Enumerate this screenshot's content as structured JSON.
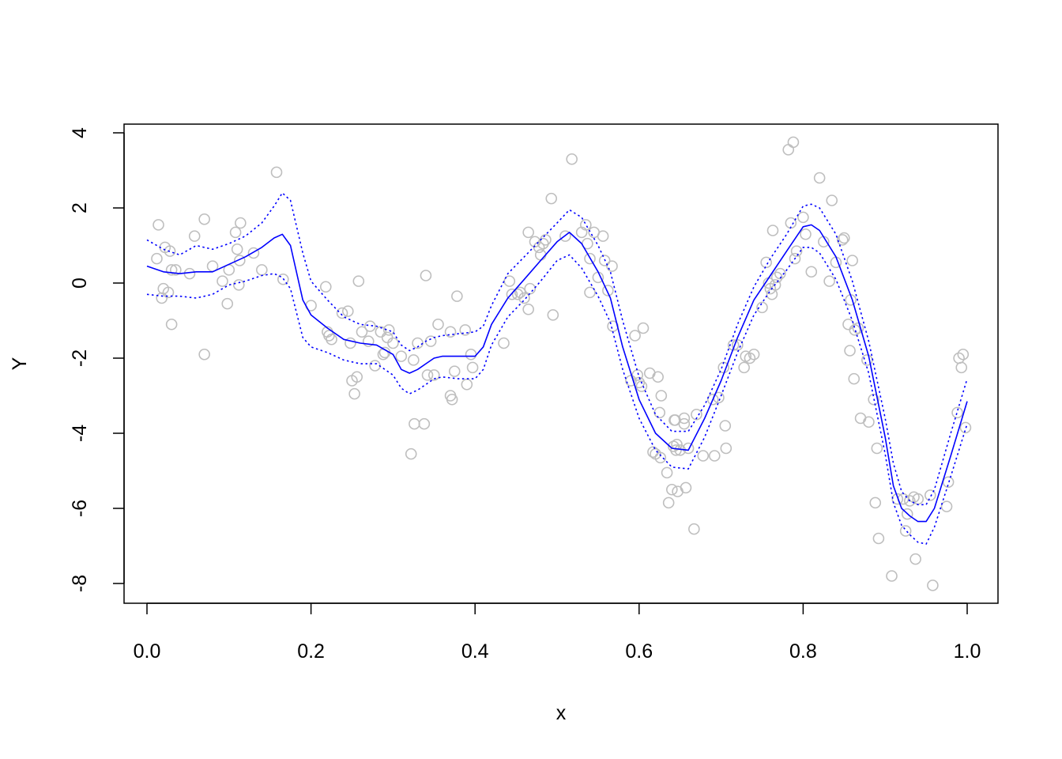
{
  "chart_data": {
    "type": "scatter",
    "title": "",
    "xlabel": "x",
    "ylabel": "Y",
    "xlim": [
      0,
      1
    ],
    "ylim": [
      -8,
      4
    ],
    "x_ticks": [
      "0.0",
      "0.2",
      "0.4",
      "0.6",
      "0.8",
      "1.0"
    ],
    "y_ticks": [
      "4",
      "2",
      "0",
      "-2",
      "-4",
      "-6",
      "-8"
    ],
    "grid": false,
    "legend": "none",
    "colors": {
      "points": "#bebebe",
      "fit": "#0000ff",
      "band": "#0000ff"
    },
    "points": [
      [
        0.012,
        0.65
      ],
      [
        0.014,
        1.55
      ],
      [
        0.018,
        -0.4
      ],
      [
        0.02,
        -0.15
      ],
      [
        0.022,
        0.95
      ],
      [
        0.026,
        -0.25
      ],
      [
        0.028,
        0.85
      ],
      [
        0.03,
        0.35
      ],
      [
        0.03,
        -1.1
      ],
      [
        0.035,
        0.35
      ],
      [
        0.052,
        0.25
      ],
      [
        0.058,
        1.25
      ],
      [
        0.07,
        1.7
      ],
      [
        0.07,
        -1.9
      ],
      [
        0.08,
        0.45
      ],
      [
        0.092,
        0.05
      ],
      [
        0.098,
        -0.55
      ],
      [
        0.1,
        0.35
      ],
      [
        0.108,
        1.35
      ],
      [
        0.11,
        0.9
      ],
      [
        0.112,
        -0.05
      ],
      [
        0.113,
        0.6
      ],
      [
        0.114,
        1.6
      ],
      [
        0.13,
        0.8
      ],
      [
        0.14,
        0.35
      ],
      [
        0.158,
        2.95
      ],
      [
        0.166,
        0.1
      ],
      [
        0.2,
        -0.6
      ],
      [
        0.218,
        -0.1
      ],
      [
        0.22,
        -1.3
      ],
      [
        0.222,
        -1.4
      ],
      [
        0.225,
        -1.5
      ],
      [
        0.238,
        -0.8
      ],
      [
        0.245,
        -0.75
      ],
      [
        0.248,
        -1.6
      ],
      [
        0.25,
        -2.6
      ],
      [
        0.253,
        -2.95
      ],
      [
        0.256,
        -2.5
      ],
      [
        0.258,
        0.05
      ],
      [
        0.262,
        -1.3
      ],
      [
        0.27,
        -1.55
      ],
      [
        0.272,
        -1.15
      ],
      [
        0.278,
        -2.2
      ],
      [
        0.285,
        -1.3
      ],
      [
        0.288,
        -1.9
      ],
      [
        0.29,
        -1.85
      ],
      [
        0.293,
        -1.45
      ],
      [
        0.295,
        -1.25
      ],
      [
        0.3,
        -1.6
      ],
      [
        0.31,
        -1.95
      ],
      [
        0.322,
        -4.55
      ],
      [
        0.325,
        -2.05
      ],
      [
        0.326,
        -3.75
      ],
      [
        0.33,
        -1.6
      ],
      [
        0.338,
        -3.75
      ],
      [
        0.34,
        0.2
      ],
      [
        0.342,
        -2.45
      ],
      [
        0.346,
        -1.55
      ],
      [
        0.35,
        -2.45
      ],
      [
        0.355,
        -1.1
      ],
      [
        0.37,
        -3.0
      ],
      [
        0.37,
        -1.3
      ],
      [
        0.372,
        -3.1
      ],
      [
        0.375,
        -2.35
      ],
      [
        0.378,
        -0.35
      ],
      [
        0.388,
        -1.25
      ],
      [
        0.39,
        -2.7
      ],
      [
        0.395,
        -1.9
      ],
      [
        0.397,
        -2.25
      ],
      [
        0.435,
        -1.6
      ],
      [
        0.442,
        0.05
      ],
      [
        0.445,
        -0.3
      ],
      [
        0.452,
        -0.3
      ],
      [
        0.455,
        -0.25
      ],
      [
        0.46,
        -0.4
      ],
      [
        0.465,
        1.35
      ],
      [
        0.465,
        -0.7
      ],
      [
        0.467,
        -0.15
      ],
      [
        0.473,
        1.1
      ],
      [
        0.478,
        0.95
      ],
      [
        0.48,
        0.75
      ],
      [
        0.483,
        1.05
      ],
      [
        0.486,
        1.15
      ],
      [
        0.493,
        2.25
      ],
      [
        0.495,
        -0.85
      ],
      [
        0.51,
        1.25
      ],
      [
        0.518,
        3.3
      ],
      [
        0.53,
        1.35
      ],
      [
        0.535,
        1.55
      ],
      [
        0.537,
        1.05
      ],
      [
        0.54,
        0.65
      ],
      [
        0.54,
        -0.25
      ],
      [
        0.545,
        1.35
      ],
      [
        0.55,
        0.15
      ],
      [
        0.556,
        1.25
      ],
      [
        0.558,
        0.6
      ],
      [
        0.562,
        -0.2
      ],
      [
        0.567,
        0.45
      ],
      [
        0.568,
        -1.15
      ],
      [
        0.59,
        -2.6
      ],
      [
        0.595,
        -1.4
      ],
      [
        0.598,
        -2.45
      ],
      [
        0.6,
        -2.65
      ],
      [
        0.603,
        -2.75
      ],
      [
        0.605,
        -1.2
      ],
      [
        0.613,
        -2.4
      ],
      [
        0.617,
        -4.5
      ],
      [
        0.62,
        -4.55
      ],
      [
        0.623,
        -2.5
      ],
      [
        0.625,
        -3.45
      ],
      [
        0.626,
        -4.65
      ],
      [
        0.627,
        -3.0
      ],
      [
        0.634,
        -5.05
      ],
      [
        0.636,
        -5.85
      ],
      [
        0.64,
        -5.5
      ],
      [
        0.642,
        -4.35
      ],
      [
        0.643,
        -3.65
      ],
      [
        0.644,
        -3.65
      ],
      [
        0.645,
        -4.45
      ],
      [
        0.646,
        -4.3
      ],
      [
        0.647,
        -5.55
      ],
      [
        0.65,
        -4.45
      ],
      [
        0.655,
        -3.75
      ],
      [
        0.655,
        -3.6
      ],
      [
        0.657,
        -5.45
      ],
      [
        0.66,
        -4.4
      ],
      [
        0.667,
        -6.55
      ],
      [
        0.67,
        -3.5
      ],
      [
        0.678,
        -4.6
      ],
      [
        0.69,
        -3.1
      ],
      [
        0.692,
        -4.6
      ],
      [
        0.697,
        -3.05
      ],
      [
        0.703,
        -2.25
      ],
      [
        0.705,
        -3.8
      ],
      [
        0.706,
        -4.4
      ],
      [
        0.715,
        -1.65
      ],
      [
        0.72,
        -1.65
      ],
      [
        0.728,
        -2.25
      ],
      [
        0.73,
        -1.95
      ],
      [
        0.735,
        -2.0
      ],
      [
        0.74,
        -1.9
      ],
      [
        0.75,
        -0.65
      ],
      [
        0.755,
        0.55
      ],
      [
        0.758,
        0.0
      ],
      [
        0.76,
        -0.15
      ],
      [
        0.762,
        -0.3
      ],
      [
        0.763,
        1.4
      ],
      [
        0.766,
        -0.05
      ],
      [
        0.768,
        0.15
      ],
      [
        0.772,
        0.25
      ],
      [
        0.782,
        3.55
      ],
      [
        0.785,
        1.6
      ],
      [
        0.788,
        3.75
      ],
      [
        0.79,
        0.65
      ],
      [
        0.792,
        0.85
      ],
      [
        0.8,
        1.75
      ],
      [
        0.803,
        1.3
      ],
      [
        0.81,
        0.3
      ],
      [
        0.82,
        2.8
      ],
      [
        0.825,
        1.1
      ],
      [
        0.832,
        0.05
      ],
      [
        0.835,
        2.2
      ],
      [
        0.84,
        0.55
      ],
      [
        0.848,
        1.15
      ],
      [
        0.85,
        1.2
      ],
      [
        0.855,
        -1.1
      ],
      [
        0.857,
        -1.8
      ],
      [
        0.858,
        -0.45
      ],
      [
        0.86,
        0.6
      ],
      [
        0.862,
        -2.55
      ],
      [
        0.863,
        -1.25
      ],
      [
        0.867,
        -1.2
      ],
      [
        0.87,
        -3.6
      ],
      [
        0.878,
        -2.05
      ],
      [
        0.88,
        -3.7
      ],
      [
        0.886,
        -3.1
      ],
      [
        0.888,
        -5.85
      ],
      [
        0.89,
        -4.4
      ],
      [
        0.892,
        -6.8
      ],
      [
        0.908,
        -7.8
      ],
      [
        0.915,
        -5.75
      ],
      [
        0.922,
        -5.75
      ],
      [
        0.925,
        -6.6
      ],
      [
        0.927,
        -6.15
      ],
      [
        0.93,
        -5.8
      ],
      [
        0.935,
        -5.7
      ],
      [
        0.937,
        -7.35
      ],
      [
        0.94,
        -5.75
      ],
      [
        0.955,
        -5.65
      ],
      [
        0.958,
        -8.05
      ],
      [
        0.975,
        -5.95
      ],
      [
        0.977,
        -5.3
      ],
      [
        0.988,
        -3.45
      ],
      [
        0.99,
        -2.0
      ],
      [
        0.993,
        -2.25
      ],
      [
        0.995,
        -1.9
      ],
      [
        0.998,
        -3.85
      ]
    ],
    "series": [
      {
        "role": "fit",
        "style": "solid",
        "x": [
          0.0,
          0.02,
          0.04,
          0.06,
          0.08,
          0.1,
          0.12,
          0.14,
          0.155,
          0.165,
          0.175,
          0.19,
          0.2,
          0.22,
          0.24,
          0.26,
          0.28,
          0.3,
          0.31,
          0.32,
          0.33,
          0.34,
          0.35,
          0.36,
          0.38,
          0.4,
          0.41,
          0.42,
          0.44,
          0.46,
          0.48,
          0.5,
          0.515,
          0.53,
          0.55,
          0.565,
          0.58,
          0.6,
          0.62,
          0.64,
          0.66,
          0.68,
          0.7,
          0.72,
          0.74,
          0.76,
          0.78,
          0.8,
          0.81,
          0.82,
          0.84,
          0.86,
          0.88,
          0.9,
          0.91,
          0.92,
          0.93,
          0.94,
          0.95,
          0.96,
          0.98,
          1.0
        ],
        "y": [
          0.45,
          0.3,
          0.25,
          0.3,
          0.3,
          0.5,
          0.7,
          0.95,
          1.2,
          1.3,
          1.0,
          -0.45,
          -0.85,
          -1.2,
          -1.5,
          -1.6,
          -1.65,
          -1.9,
          -2.3,
          -2.4,
          -2.3,
          -2.15,
          -2.0,
          -1.95,
          -1.95,
          -1.95,
          -1.7,
          -1.1,
          -0.4,
          0.1,
          0.6,
          1.1,
          1.35,
          1.05,
          0.3,
          -0.4,
          -1.7,
          -3.1,
          -4.0,
          -4.4,
          -4.45,
          -3.6,
          -2.6,
          -1.45,
          -0.45,
          0.2,
          0.85,
          1.5,
          1.55,
          1.4,
          0.7,
          -0.45,
          -1.95,
          -4.1,
          -5.4,
          -6.0,
          -6.2,
          -6.35,
          -6.35,
          -6.0,
          -4.6,
          -3.15
        ]
      },
      {
        "role": "upper band",
        "style": "dotted",
        "x": [
          0.0,
          0.02,
          0.04,
          0.06,
          0.08,
          0.1,
          0.12,
          0.14,
          0.155,
          0.165,
          0.175,
          0.19,
          0.2,
          0.22,
          0.24,
          0.26,
          0.28,
          0.3,
          0.31,
          0.32,
          0.33,
          0.34,
          0.35,
          0.36,
          0.38,
          0.4,
          0.41,
          0.42,
          0.44,
          0.46,
          0.48,
          0.5,
          0.515,
          0.53,
          0.55,
          0.565,
          0.58,
          0.6,
          0.62,
          0.64,
          0.66,
          0.68,
          0.7,
          0.72,
          0.74,
          0.76,
          0.78,
          0.8,
          0.81,
          0.82,
          0.84,
          0.86,
          0.88,
          0.9,
          0.91,
          0.92,
          0.93,
          0.94,
          0.95,
          0.96,
          0.98,
          1.0
        ],
        "y": [
          1.15,
          0.9,
          0.75,
          1.0,
          0.9,
          1.05,
          1.25,
          1.6,
          2.05,
          2.4,
          2.2,
          0.8,
          0.05,
          -0.45,
          -0.9,
          -1.1,
          -1.15,
          -1.3,
          -1.65,
          -1.8,
          -1.7,
          -1.55,
          -1.45,
          -1.4,
          -1.35,
          -1.3,
          -1.15,
          -0.6,
          0.25,
          0.7,
          1.15,
          1.6,
          1.95,
          1.75,
          1.0,
          0.3,
          -1.0,
          -2.5,
          -3.5,
          -3.95,
          -3.95,
          -3.25,
          -2.3,
          -1.1,
          -0.1,
          0.65,
          1.3,
          2.05,
          2.1,
          2.0,
          1.3,
          0.05,
          -1.55,
          -3.6,
          -4.8,
          -5.55,
          -5.8,
          -5.9,
          -5.9,
          -5.5,
          -4.0,
          -2.55
        ]
      },
      {
        "role": "lower band",
        "style": "dotted",
        "x": [
          0.0,
          0.02,
          0.04,
          0.06,
          0.08,
          0.1,
          0.12,
          0.14,
          0.155,
          0.165,
          0.175,
          0.19,
          0.2,
          0.22,
          0.24,
          0.26,
          0.28,
          0.3,
          0.31,
          0.32,
          0.33,
          0.34,
          0.35,
          0.36,
          0.38,
          0.4,
          0.41,
          0.42,
          0.44,
          0.46,
          0.48,
          0.5,
          0.515,
          0.53,
          0.55,
          0.565,
          0.58,
          0.6,
          0.62,
          0.64,
          0.66,
          0.68,
          0.7,
          0.72,
          0.74,
          0.76,
          0.78,
          0.8,
          0.81,
          0.82,
          0.84,
          0.86,
          0.88,
          0.9,
          0.91,
          0.92,
          0.93,
          0.94,
          0.95,
          0.96,
          0.98,
          1.0
        ],
        "y": [
          -0.3,
          -0.35,
          -0.35,
          -0.4,
          -0.3,
          -0.05,
          0.05,
          0.2,
          0.25,
          0.15,
          -0.15,
          -1.45,
          -1.7,
          -1.85,
          -2.05,
          -2.15,
          -2.15,
          -2.45,
          -2.8,
          -2.95,
          -2.85,
          -2.7,
          -2.55,
          -2.5,
          -2.55,
          -2.55,
          -2.3,
          -1.65,
          -0.9,
          -0.45,
          0.05,
          0.6,
          0.75,
          0.4,
          -0.35,
          -1.05,
          -2.3,
          -3.6,
          -4.45,
          -4.9,
          -4.95,
          -4.1,
          -3.0,
          -1.85,
          -0.85,
          -0.2,
          0.35,
          0.95,
          0.95,
          0.8,
          0.1,
          -1.0,
          -2.4,
          -4.55,
          -5.85,
          -6.45,
          -6.7,
          -6.9,
          -6.95,
          -6.5,
          -5.15,
          -3.75
        ]
      }
    ]
  }
}
